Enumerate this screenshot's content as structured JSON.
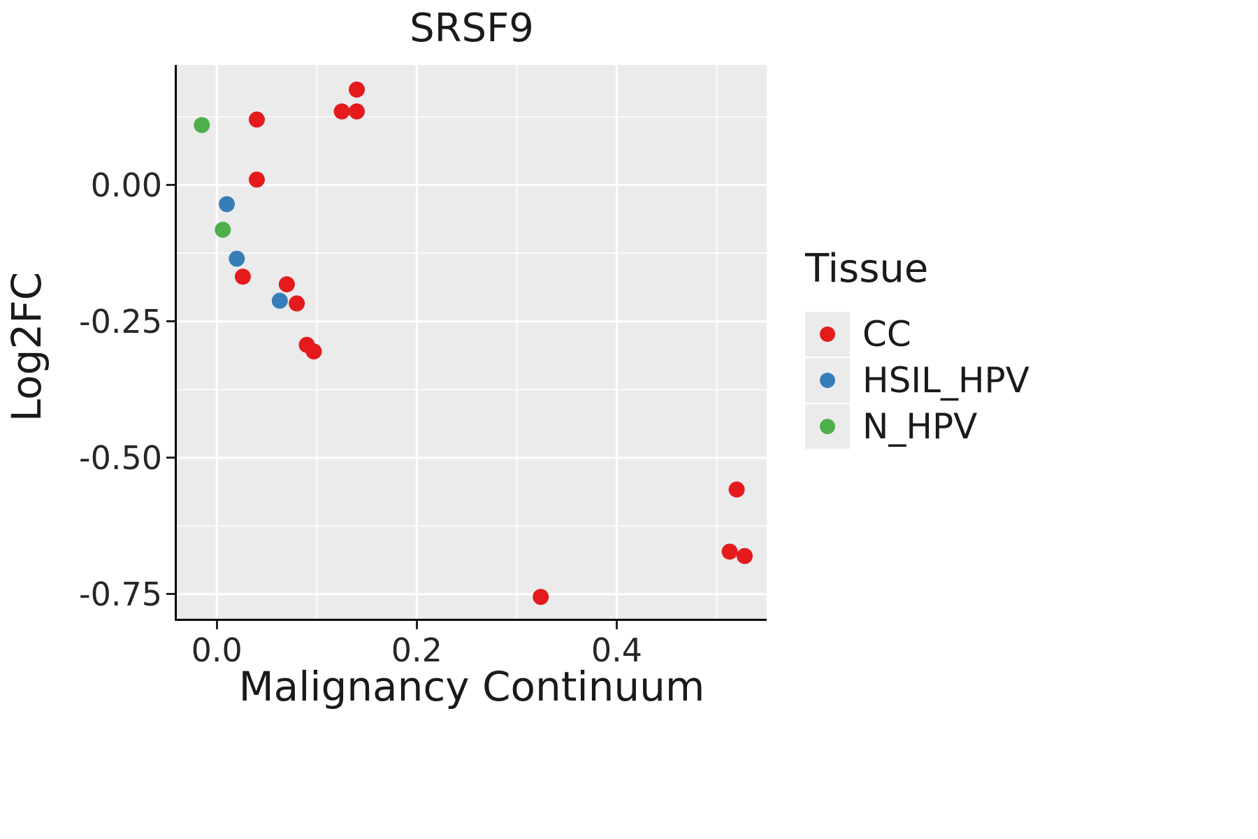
{
  "chart_data": {
    "type": "scatter",
    "title": "SRSF9",
    "xlabel": "Malignancy Continuum",
    "ylabel": "Log2FC",
    "legend_title": "Tissue",
    "legend_position": "right",
    "grid": true,
    "panel_bg": "#EBEBEB",
    "grid_color": "#FFFFFF",
    "xlim": [
      -0.04,
      0.55
    ],
    "ylim": [
      -0.795,
      0.22
    ],
    "x_ticks": {
      "values": [
        0.0,
        0.2,
        0.4
      ],
      "labels": [
        "0.0",
        "0.2",
        "0.4"
      ]
    },
    "y_ticks": {
      "values": [
        0.0,
        -0.25,
        -0.5,
        -0.75
      ],
      "labels": [
        "0.00",
        "-0.25",
        "-0.50",
        "-0.75"
      ]
    },
    "x_minor": [
      0.1,
      0.3,
      0.5
    ],
    "y_minor": [
      0.125,
      -0.125,
      -0.375,
      -0.625
    ],
    "series": [
      {
        "name": "CC",
        "color": "#E41A1C",
        "points": [
          [
            0.14,
            0.175
          ],
          [
            0.125,
            0.135
          ],
          [
            0.14,
            0.135
          ],
          [
            0.04,
            0.12
          ],
          [
            0.04,
            0.01
          ],
          [
            0.026,
            -0.168
          ],
          [
            0.07,
            -0.182
          ],
          [
            0.08,
            -0.217
          ],
          [
            0.09,
            -0.293
          ],
          [
            0.097,
            -0.305
          ],
          [
            0.52,
            -0.558
          ],
          [
            0.513,
            -0.672
          ],
          [
            0.528,
            -0.68
          ],
          [
            0.324,
            -0.755
          ]
        ]
      },
      {
        "name": "HSIL_HPV",
        "color": "#377EB8",
        "points": [
          [
            0.01,
            -0.035
          ],
          [
            0.02,
            -0.135
          ],
          [
            0.063,
            -0.212
          ]
        ]
      },
      {
        "name": "N_HPV",
        "color": "#4DAF4A",
        "points": [
          [
            -0.015,
            0.11
          ],
          [
            0.006,
            -0.082
          ]
        ]
      }
    ]
  }
}
